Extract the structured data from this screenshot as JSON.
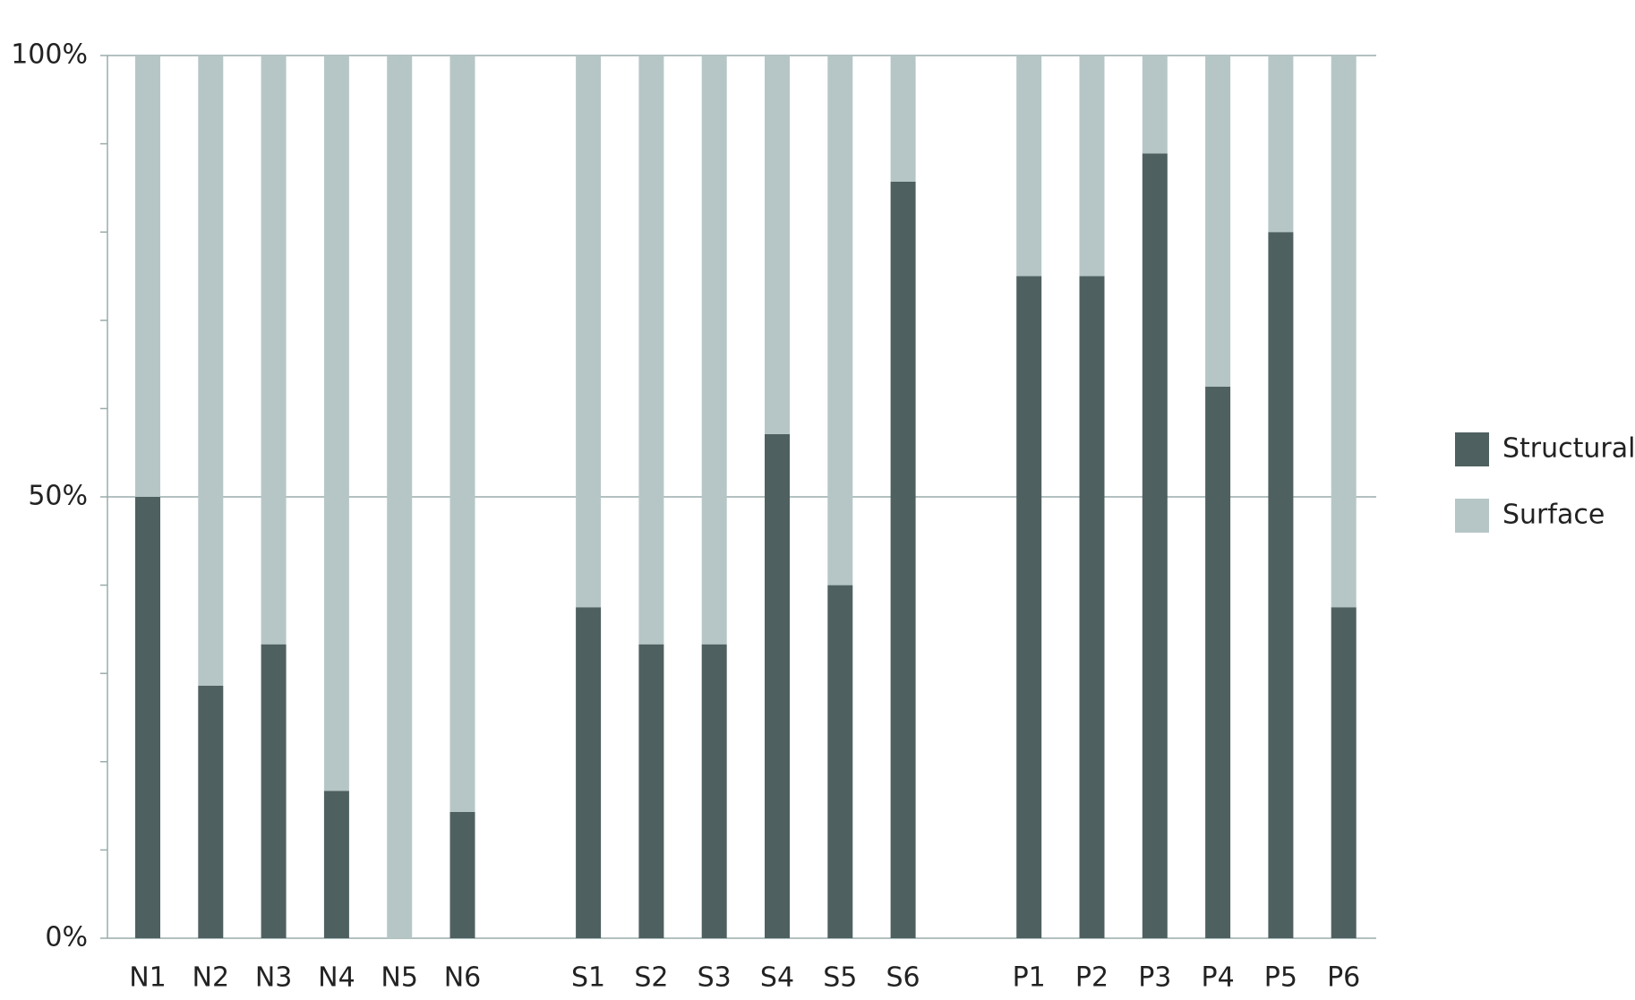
{
  "chart_data": {
    "type": "stacked_bar",
    "categories": [
      "N1",
      "N2",
      "N3",
      "N4",
      "N5",
      "N6",
      null,
      "S1",
      "S2",
      "S3",
      "S4",
      "S5",
      "S6",
      null,
      "P1",
      "P2",
      "P3",
      "P4",
      "P5",
      "P6"
    ],
    "series": [
      {
        "name": "Structural",
        "color": "#4f6060",
        "values": [
          50,
          28.6,
          33.3,
          16.7,
          0,
          14.3,
          null,
          37.5,
          33.3,
          33.3,
          57.1,
          40,
          85.7,
          null,
          75,
          75,
          88.9,
          62.5,
          80,
          37.5
        ]
      },
      {
        "name": "Surface",
        "color": "#b6c6c6",
        "values": [
          50,
          71.4,
          66.7,
          83.3,
          100,
          85.7,
          null,
          62.5,
          66.7,
          66.7,
          42.9,
          60,
          14.3,
          null,
          25,
          25,
          11.1,
          37.5,
          20,
          62.5
        ]
      }
    ],
    "ylim": [
      0,
      100
    ],
    "yticks": [
      {
        "value": 0,
        "label": "0%"
      },
      {
        "value": 50,
        "label": "50%"
      },
      {
        "value": 100,
        "label": "100%"
      }
    ],
    "yminorticks": [
      10,
      20,
      30,
      40,
      60,
      70,
      80,
      90
    ],
    "grid": true,
    "legend": "right"
  }
}
